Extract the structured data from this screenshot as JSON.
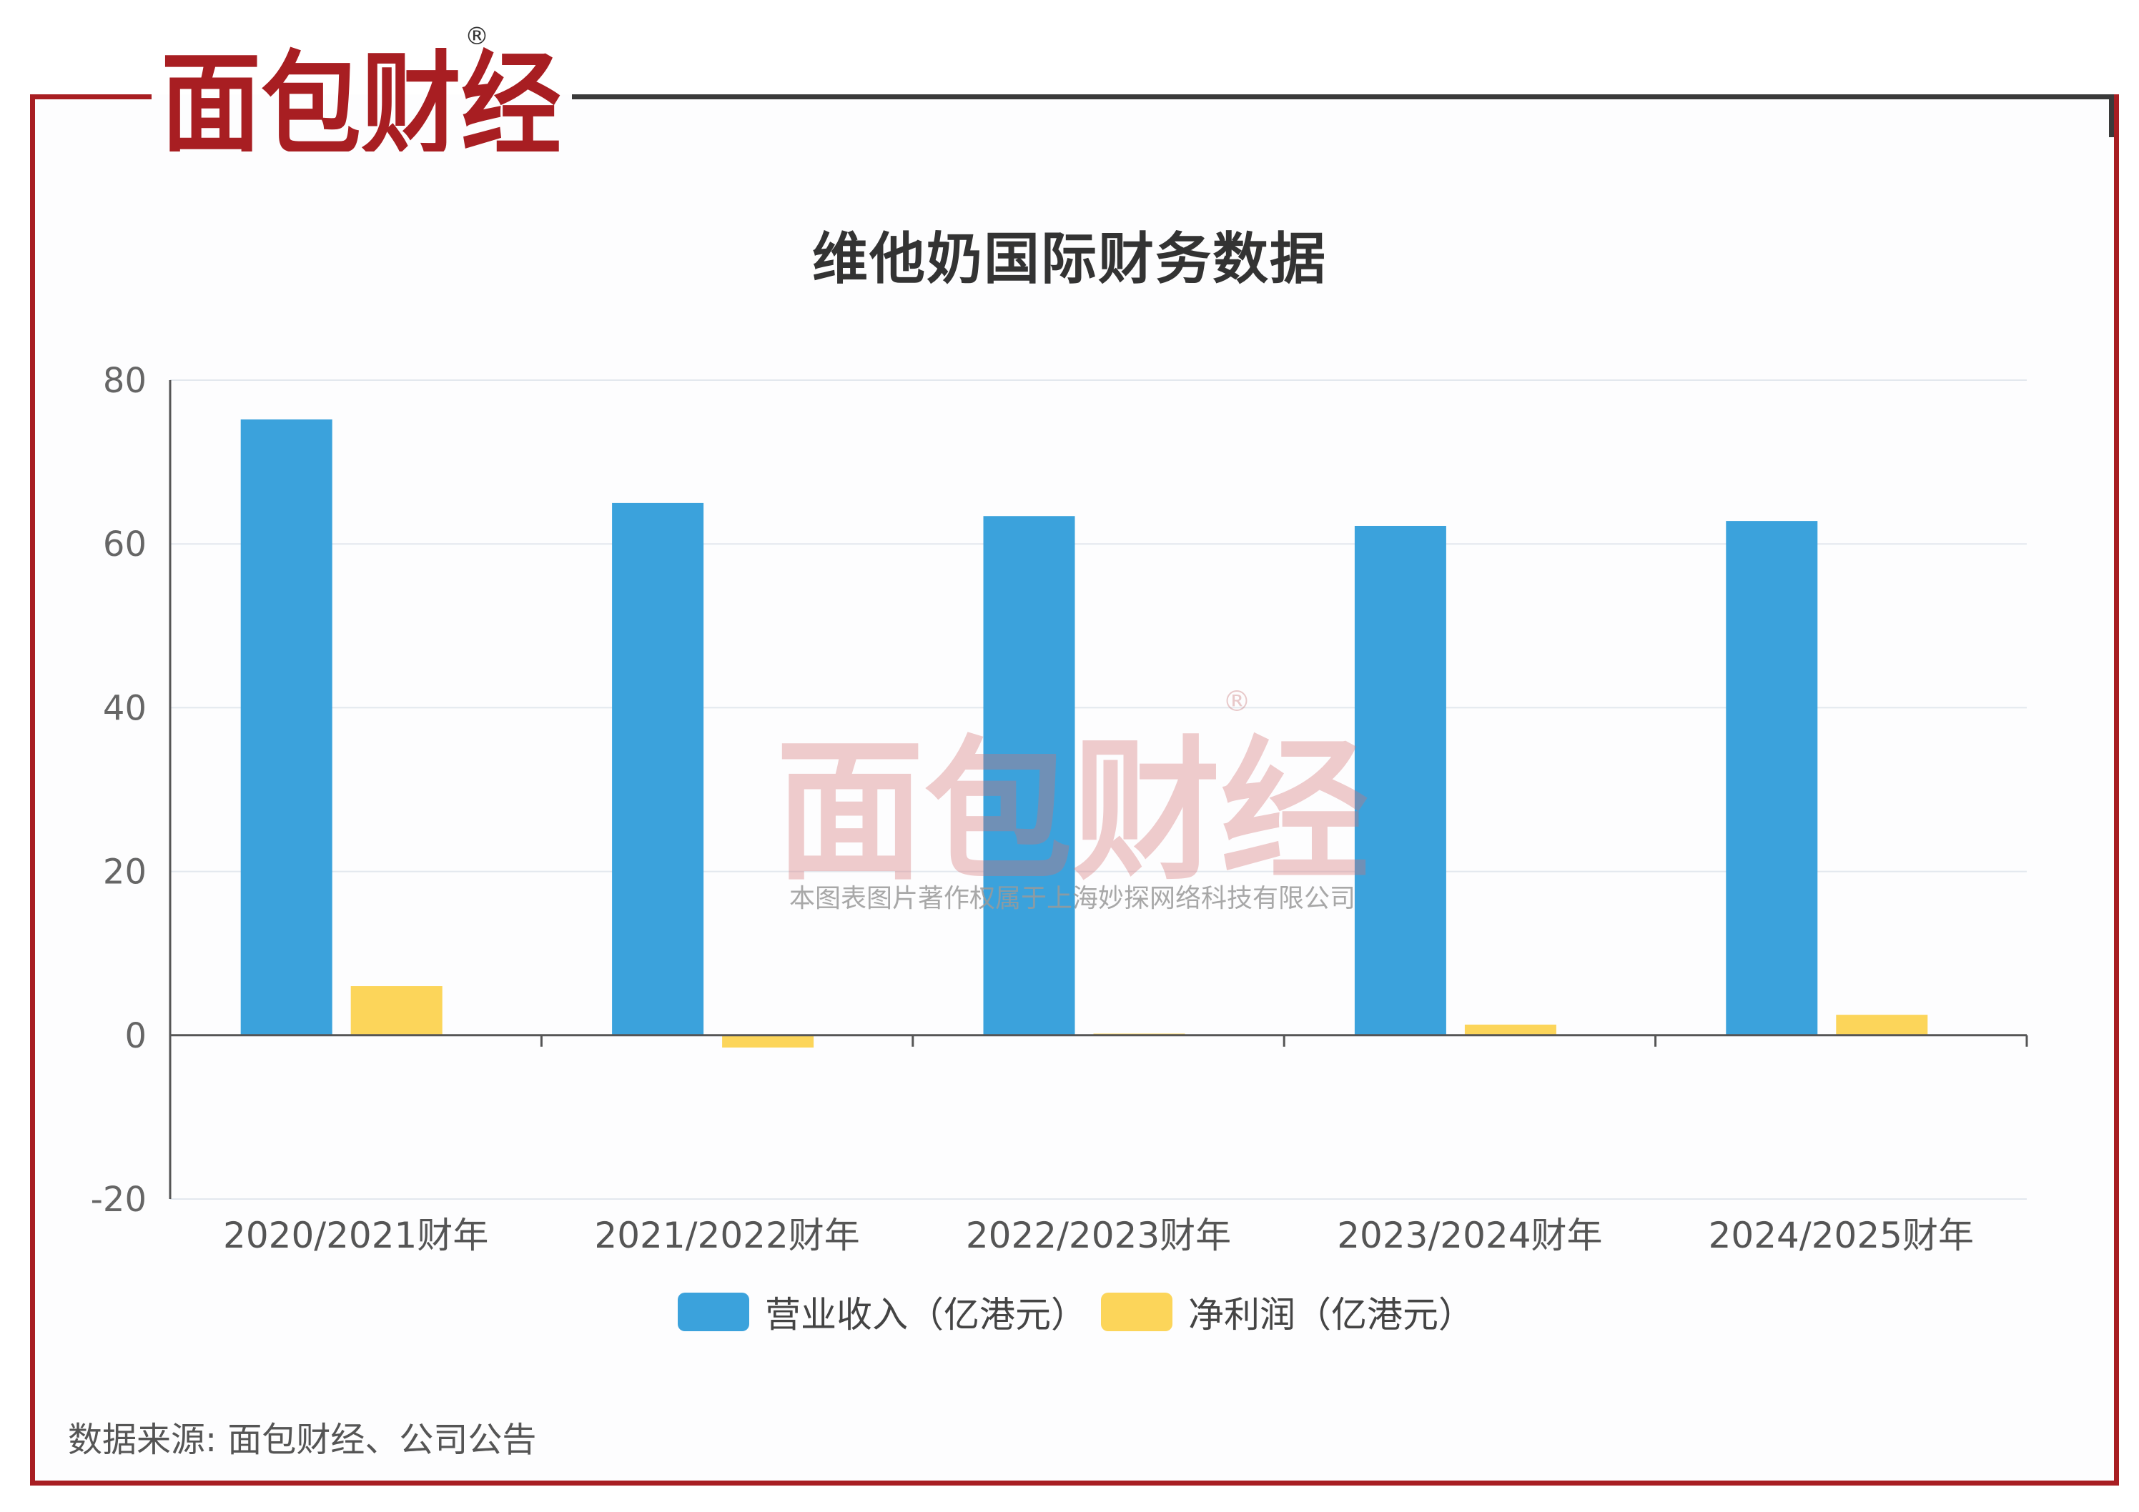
{
  "brand": {
    "logo_text": "面包财经",
    "registered_mark": "®",
    "brand_red": "#a81e22",
    "brand_dark": "#222222"
  },
  "watermark": {
    "logo_text": "面包财经",
    "registered_mark": "®",
    "copyright": "本图表图片著作权属于上海妙探网络科技有限公司"
  },
  "source_text": "数据来源: 面包财经、公司公告",
  "chart_data": {
    "type": "bar",
    "title": "维他奶国际财务数据",
    "categories": [
      "2020/2021财年",
      "2021/2022财年",
      "2022/2023财年",
      "2023/2024财年",
      "2024/2025财年"
    ],
    "series": [
      {
        "name": "营业收入（亿港元）",
        "color": "#3ba2dc",
        "values": [
          75.2,
          65.0,
          63.4,
          62.2,
          62.8
        ]
      },
      {
        "name": "净利润（亿港元）",
        "color": "#fcd55a",
        "values": [
          6.0,
          -1.5,
          0.2,
          1.3,
          2.5
        ]
      }
    ],
    "ylim": [
      -20,
      80
    ],
    "yticks": [
      "80",
      "60",
      "40",
      "20",
      "0",
      "-20"
    ],
    "xlabel": "",
    "ylabel": "",
    "grid": true,
    "legend": "bottom-center"
  }
}
